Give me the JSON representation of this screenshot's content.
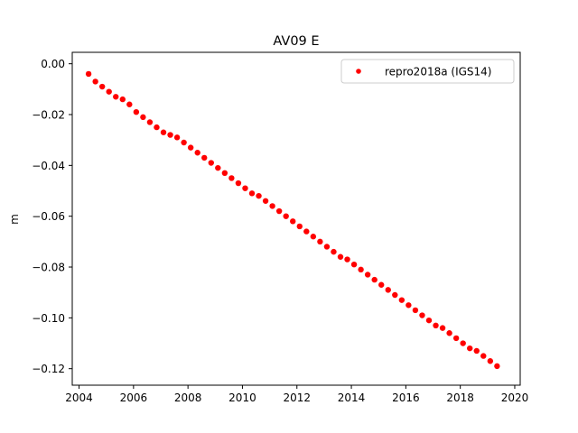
{
  "chart_data": {
    "type": "scatter",
    "title": "AV09 E",
    "xlabel": "",
    "ylabel": "m",
    "xlim": [
      2003.75,
      2020.2
    ],
    "ylim": [
      -0.1265,
      0.0045
    ],
    "x_ticks": [
      2004,
      2006,
      2008,
      2010,
      2012,
      2014,
      2016,
      2018,
      2020
    ],
    "x_tick_labels": [
      "2004",
      "2006",
      "2008",
      "2010",
      "2012",
      "2014",
      "2016",
      "2018",
      "2020"
    ],
    "y_ticks": [
      0.0,
      -0.02,
      -0.04,
      -0.06,
      -0.08,
      -0.1,
      -0.12
    ],
    "y_tick_labels": [
      "0.00",
      "−0.02",
      "−0.04",
      "−0.06",
      "−0.08",
      "−0.10",
      "−0.12"
    ],
    "grid": false,
    "legend_position": "top-right",
    "series": [
      {
        "name": "repro2018a (IGS14)",
        "color": "#ff0000",
        "marker": "circle",
        "x": [
          2004.35,
          2004.6,
          2004.85,
          2005.1,
          2005.35,
          2005.6,
          2005.85,
          2006.1,
          2006.35,
          2006.6,
          2006.85,
          2007.1,
          2007.35,
          2007.6,
          2007.85,
          2008.1,
          2008.35,
          2008.6,
          2008.85,
          2009.1,
          2009.35,
          2009.6,
          2009.85,
          2010.1,
          2010.35,
          2010.6,
          2010.85,
          2011.1,
          2011.35,
          2011.6,
          2011.85,
          2012.1,
          2012.35,
          2012.6,
          2012.85,
          2013.1,
          2013.35,
          2013.6,
          2013.85,
          2014.1,
          2014.35,
          2014.6,
          2014.85,
          2015.1,
          2015.35,
          2015.6,
          2015.85,
          2016.1,
          2016.35,
          2016.6,
          2016.85,
          2017.1,
          2017.35,
          2017.6,
          2017.85,
          2018.1,
          2018.35,
          2018.6,
          2018.85,
          2019.1,
          2019.35
        ],
        "y": [
          -0.004,
          -0.007,
          -0.009,
          -0.011,
          -0.013,
          -0.014,
          -0.016,
          -0.019,
          -0.021,
          -0.023,
          -0.025,
          -0.027,
          -0.028,
          -0.029,
          -0.031,
          -0.033,
          -0.035,
          -0.037,
          -0.039,
          -0.041,
          -0.043,
          -0.045,
          -0.047,
          -0.049,
          -0.051,
          -0.052,
          -0.054,
          -0.056,
          -0.058,
          -0.06,
          -0.062,
          -0.064,
          -0.066,
          -0.068,
          -0.07,
          -0.072,
          -0.074,
          -0.076,
          -0.077,
          -0.079,
          -0.081,
          -0.083,
          -0.085,
          -0.087,
          -0.089,
          -0.091,
          -0.093,
          -0.095,
          -0.097,
          -0.099,
          -0.101,
          -0.103,
          -0.104,
          -0.106,
          -0.108,
          -0.11,
          -0.112,
          -0.113,
          -0.115,
          -0.117,
          -0.119
        ]
      }
    ]
  }
}
